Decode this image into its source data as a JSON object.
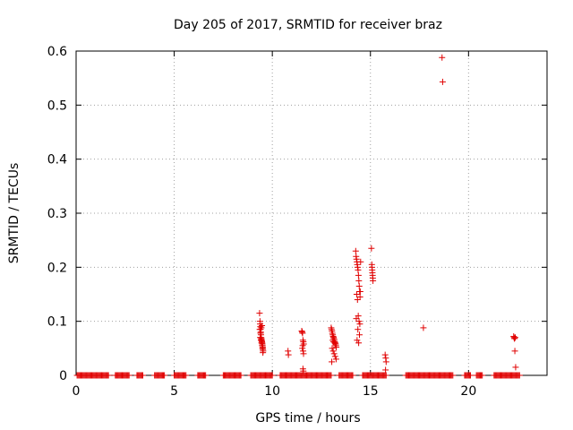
{
  "chart_data": {
    "type": "scatter",
    "title": "Day 205 of 2017, SRMTID for receiver braz",
    "xlabel": "GPS time / hours",
    "ylabel": "SRMTID / TECUs",
    "xlim": [
      0,
      24
    ],
    "ylim": [
      0,
      0.6
    ],
    "xticks": [
      0,
      5,
      10,
      15,
      20
    ],
    "xtick_labels": [
      "0",
      "5",
      "10",
      "15",
      "20"
    ],
    "yticks": [
      0,
      0.1,
      0.2,
      0.3,
      0.4,
      0.5,
      0.6
    ],
    "ytick_labels": [
      "0",
      "0.1",
      "0.2",
      "0.3",
      "0.4",
      "0.5",
      "0.6"
    ],
    "grid": true,
    "marker": "+",
    "color": "#e00000",
    "zero_ranges": [
      [
        0.05,
        1.65
      ],
      [
        2.0,
        2.7
      ],
      [
        3.1,
        3.4
      ],
      [
        4.0,
        4.5
      ],
      [
        5.0,
        5.6
      ],
      [
        6.2,
        6.6
      ],
      [
        7.5,
        8.4
      ],
      [
        8.9,
        10.0
      ],
      [
        10.4,
        13.0
      ],
      [
        13.4,
        14.1
      ],
      [
        14.6,
        15.8
      ],
      [
        16.8,
        19.2
      ],
      [
        19.8,
        20.1
      ],
      [
        20.4,
        20.7
      ],
      [
        21.3,
        22.6
      ]
    ],
    "zero_step": 0.05,
    "series": [
      {
        "name": "SRMTID",
        "x": [
          9.35,
          9.37,
          9.38,
          9.39,
          9.4,
          9.41,
          9.42,
          9.43,
          9.44,
          9.45,
          9.46,
          9.47,
          9.48,
          9.49,
          9.5,
          9.51,
          9.52,
          9.53,
          9.38,
          9.42,
          9.45,
          9.48,
          9.5,
          9.52,
          9.4,
          9.44,
          9.47,
          9.36,
          10.8,
          10.82,
          11.5,
          11.52,
          11.54,
          11.56,
          11.58,
          11.6,
          11.55,
          11.53,
          11.57,
          11.59,
          11.56,
          11.58,
          13.0,
          13.02,
          13.04,
          13.06,
          13.08,
          13.1,
          13.12,
          13.14,
          13.16,
          13.18,
          13.2,
          13.22,
          13.24,
          13.26,
          13.05,
          13.1,
          13.15,
          13.2,
          13.08,
          13.12,
          13.18,
          13.22,
          13.03,
          13.25,
          14.25,
          14.27,
          14.29,
          14.31,
          14.33,
          14.35,
          14.37,
          14.39,
          14.41,
          14.43,
          14.45,
          14.47,
          14.3,
          14.34,
          14.38,
          14.42,
          14.46,
          14.28,
          14.36,
          14.44,
          14.32,
          14.4,
          14.48,
          14.5,
          15.05,
          15.07,
          15.09,
          15.11,
          15.13,
          15.08,
          15.1,
          15.12,
          15.75,
          15.78,
          15.8,
          15.77,
          17.7,
          18.65,
          18.68,
          22.3,
          22.32,
          22.34,
          22.36,
          22.4,
          22.38
        ],
        "y": [
          0.115,
          0.1,
          0.095,
          0.09,
          0.085,
          0.08,
          0.075,
          0.07,
          0.068,
          0.066,
          0.064,
          0.062,
          0.06,
          0.058,
          0.055,
          0.052,
          0.048,
          0.045,
          0.07,
          0.065,
          0.06,
          0.055,
          0.05,
          0.042,
          0.078,
          0.088,
          0.092,
          0.085,
          0.045,
          0.038,
          0.082,
          0.08,
          0.078,
          0.065,
          0.062,
          0.058,
          0.055,
          0.05,
          0.045,
          0.04,
          0.012,
          0.008,
          0.088,
          0.085,
          0.082,
          0.078,
          0.075,
          0.072,
          0.07,
          0.068,
          0.065,
          0.062,
          0.06,
          0.058,
          0.055,
          0.052,
          0.05,
          0.045,
          0.04,
          0.035,
          0.065,
          0.062,
          0.06,
          0.058,
          0.025,
          0.03,
          0.23,
          0.22,
          0.215,
          0.21,
          0.205,
          0.2,
          0.195,
          0.185,
          0.175,
          0.165,
          0.155,
          0.145,
          0.15,
          0.14,
          0.11,
          0.1,
          0.095,
          0.105,
          0.085,
          0.075,
          0.065,
          0.06,
          0.155,
          0.21,
          0.235,
          0.205,
          0.195,
          0.185,
          0.175,
          0.2,
          0.19,
          0.18,
          0.038,
          0.032,
          0.025,
          0.01,
          0.088,
          0.588,
          0.543,
          0.072,
          0.07,
          0.068,
          0.045,
          0.015,
          0.07
        ]
      }
    ]
  }
}
